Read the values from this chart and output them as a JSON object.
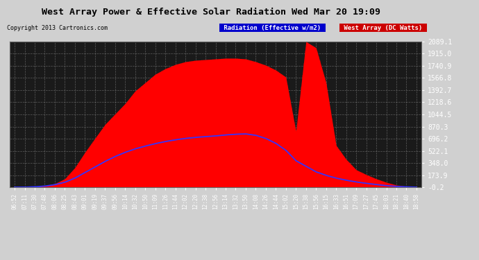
{
  "title": "West Array Power & Effective Solar Radiation Wed Mar 20 19:09",
  "copyright": "Copyright 2013 Cartronics.com",
  "legend_radiation": "Radiation (Effective w/m2)",
  "legend_west": "West Array (DC Watts)",
  "ymin": -0.2,
  "ymax": 2089.1,
  "yticks": [
    -0.2,
    173.9,
    348.0,
    522.1,
    696.2,
    870.3,
    1044.5,
    1218.6,
    1392.7,
    1566.8,
    1740.9,
    1915.0,
    2089.1
  ],
  "fig_bg": "#d0d0d0",
  "plot_bg": "#1a1a1a",
  "red_color": "#ff0000",
  "blue_color": "#3333ff",
  "xtick_labels": [
    "06:52",
    "07:11",
    "07:30",
    "07:48",
    "08:06",
    "08:25",
    "08:43",
    "09:01",
    "09:19",
    "09:37",
    "09:56",
    "10:14",
    "10:32",
    "10:50",
    "11:09",
    "11:26",
    "11:44",
    "12:02",
    "12:20",
    "12:38",
    "12:56",
    "13:14",
    "13:32",
    "13:50",
    "14:08",
    "14:26",
    "14:44",
    "15:02",
    "15:20",
    "15:38",
    "15:56",
    "16:15",
    "16:33",
    "16:51",
    "17:09",
    "17:27",
    "17:45",
    "18:03",
    "18:21",
    "18:40",
    "18:58"
  ],
  "red_vals": [
    0,
    0,
    5,
    20,
    50,
    120,
    280,
    500,
    700,
    900,
    1050,
    1200,
    1380,
    1500,
    1620,
    1700,
    1760,
    1800,
    1820,
    1830,
    1840,
    1850,
    1850,
    1840,
    1800,
    1750,
    1680,
    1580,
    800,
    2089,
    2000,
    1500,
    600,
    400,
    250,
    180,
    120,
    70,
    30,
    10,
    0
  ],
  "blue_vals": [
    0,
    0,
    5,
    15,
    35,
    70,
    130,
    210,
    290,
    370,
    440,
    500,
    550,
    590,
    625,
    655,
    680,
    700,
    715,
    725,
    735,
    750,
    760,
    765,
    745,
    700,
    630,
    530,
    380,
    300,
    220,
    170,
    130,
    100,
    75,
    55,
    38,
    22,
    10,
    4,
    0
  ]
}
